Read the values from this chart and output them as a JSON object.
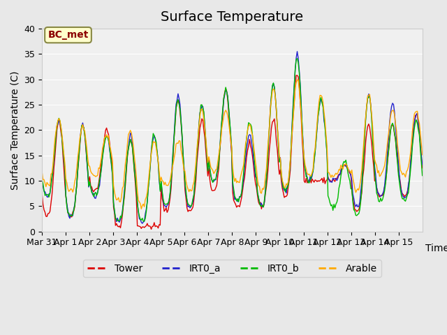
{
  "title": "Surface Temperature",
  "ylabel": "Surface Temperature (C)",
  "xlabel": "Time",
  "ylim": [
    0,
    40
  ],
  "x_tick_labels": [
    "Mar 31",
    "Apr 1",
    "Apr 2",
    "Apr 3",
    "Apr 4",
    "Apr 5",
    "Apr 6",
    "Apr 7",
    "Apr 8",
    "Apr 9",
    "Apr 10",
    "Apr 11",
    "Apr 12",
    "Apr 13",
    "Apr 14",
    "Apr 15"
  ],
  "annotation_text": "BC_met",
  "background_color": "#e8e8e8",
  "plot_bg_color": "#f0f0f0",
  "series_colors": {
    "Tower": "#dd0000",
    "IRT0_a": "#2222cc",
    "IRT0_b": "#00bb00",
    "Arable": "#ffaa00"
  },
  "legend_labels": [
    "Tower",
    "IRT0_a",
    "IRT0_b",
    "Arable"
  ],
  "title_fontsize": 14,
  "axis_fontsize": 10,
  "legend_fontsize": 10,
  "annotation_fontsize": 10,
  "yticks": [
    0,
    5,
    10,
    15,
    20,
    25,
    30,
    35,
    40
  ]
}
